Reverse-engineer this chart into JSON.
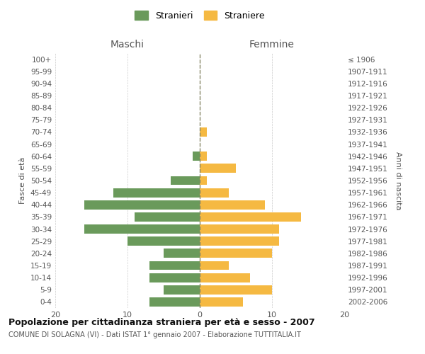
{
  "age_groups": [
    "100+",
    "95-99",
    "90-94",
    "85-89",
    "80-84",
    "75-79",
    "70-74",
    "65-69",
    "60-64",
    "55-59",
    "50-54",
    "45-49",
    "40-44",
    "35-39",
    "30-34",
    "25-29",
    "20-24",
    "15-19",
    "10-14",
    "5-9",
    "0-4"
  ],
  "birth_years": [
    "≤ 1906",
    "1907-1911",
    "1912-1916",
    "1917-1921",
    "1922-1926",
    "1927-1931",
    "1932-1936",
    "1937-1941",
    "1942-1946",
    "1947-1951",
    "1952-1956",
    "1957-1961",
    "1962-1966",
    "1967-1971",
    "1972-1976",
    "1977-1981",
    "1982-1986",
    "1987-1991",
    "1992-1996",
    "1997-2001",
    "2002-2006"
  ],
  "maschi": [
    0,
    0,
    0,
    0,
    0,
    0,
    0,
    0,
    1,
    0,
    4,
    12,
    16,
    9,
    16,
    10,
    5,
    7,
    7,
    5,
    7
  ],
  "femmine": [
    0,
    0,
    0,
    0,
    0,
    0,
    1,
    0,
    1,
    5,
    1,
    4,
    9,
    14,
    11,
    11,
    10,
    4,
    7,
    10,
    6
  ],
  "color_maschi": "#6a9a5b",
  "color_femmine": "#f5b942",
  "title": "Popolazione per cittadinanza straniera per età e sesso - 2007",
  "subtitle": "COMUNE DI SOLAGNA (VI) - Dati ISTAT 1° gennaio 2007 - Elaborazione TUTTITALIA.IT",
  "xlabel_left": "Maschi",
  "xlabel_right": "Femmine",
  "ylabel_left": "Fasce di età",
  "ylabel_right": "Anni di nascita",
  "legend_maschi": "Stranieri",
  "legend_femmine": "Straniere",
  "xlim": 20,
  "background_color": "#ffffff"
}
